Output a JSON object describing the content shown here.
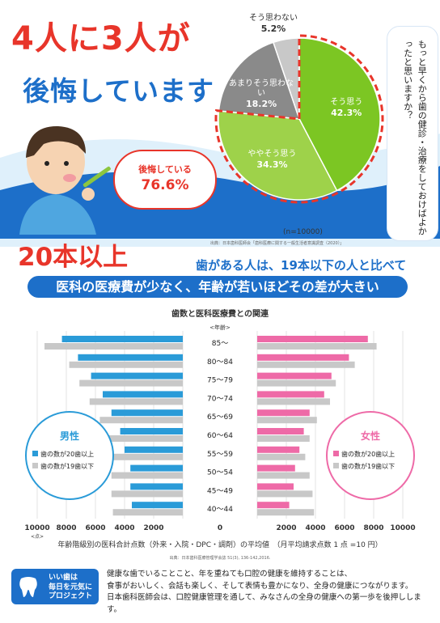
{
  "hero": {
    "headline_line1": "4人に3人が",
    "headline_line2": "後悔しています",
    "regret_label": "後悔している",
    "regret_pct": "76.6%"
  },
  "survey": {
    "question": "もっと早くから歯の健診・治療をしておけばよかったと思いますか？",
    "n": "(n=10000)",
    "source": "出典：日本歯科医師会「歯科医療に関する一般生活者意識調査（2020）」",
    "chart_data": {
      "type": "pie",
      "slices": [
        {
          "label": "そう思う",
          "value": 42.3,
          "text": "42.3%",
          "color": "#7cc623"
        },
        {
          "label": "ややそう思う",
          "value": 34.3,
          "text": "34.3%",
          "color": "#9ed24a"
        },
        {
          "label": "あまりそう思わない",
          "value": 18.2,
          "text": "18.2%",
          "color": "#8a8a8a"
        },
        {
          "label": "そう思わない",
          "value": 5.2,
          "text": "5.2%",
          "color": "#c8c8c8"
        }
      ]
    }
  },
  "mid": {
    "big": "20本以上",
    "sub": "歯がある人は、19本以下の人と比べて",
    "banner": "医科の医療費が少なく、年齢が若いほどその差が大きい"
  },
  "teeth_chart": {
    "title": "歯数と医科医療費との関連",
    "age_header": "<年齢>",
    "male_title": "男性",
    "female_title": "女性",
    "legend_20": "歯の数が20歯以上",
    "legend_19": "歯の数が19歯以下",
    "x_unit": "<点>",
    "axis_caption": "年齢階級別の医科合計点数（外来・入院・DPC・調剤）の平均値　（月平均請求点数 1 点 =10 円）",
    "source": "出典：日本歯科医療管理学会誌 51(3), 136-142,2016.",
    "chart_data": {
      "type": "bar",
      "orientation": "horizontal-butterfly",
      "categories": [
        "85～",
        "80～84",
        "75～79",
        "70～74",
        "65～69",
        "60～64",
        "55～59",
        "50～54",
        "45～49",
        "40～44"
      ],
      "x_ticks": [
        "10000",
        "8000",
        "6000",
        "4000",
        "2000",
        "0",
        "2000",
        "4000",
        "6000",
        "8000",
        "10000"
      ],
      "xlim": [
        0,
        10000
      ],
      "series": [
        {
          "name": "男性 歯の数が20歯以上",
          "color": "#2a9bd8",
          "values": [
            8300,
            7200,
            6300,
            5500,
            4900,
            4300,
            4000,
            3600,
            3600,
            3500
          ]
        },
        {
          "name": "男性 歯の数が19歯以下",
          "color": "#c8c8c8",
          "values": [
            9500,
            7800,
            7100,
            6400,
            5700,
            5100,
            4800,
            4900,
            4900,
            4800
          ]
        },
        {
          "name": "女性 歯の数が20歯以上",
          "color": "#ee6aa7",
          "values": [
            7600,
            6300,
            5100,
            4600,
            3600,
            3200,
            2900,
            2600,
            2500,
            2200
          ]
        },
        {
          "name": "女性 歯の数が19歯以下",
          "color": "#c8c8c8",
          "values": [
            8200,
            6700,
            5400,
            5000,
            4100,
            3600,
            3300,
            3600,
            3800,
            3900
          ]
        }
      ]
    }
  },
  "footer": {
    "logo_line1": "いい歯は",
    "logo_line2": "毎日を元気に",
    "logo_line3": "プロジェクト",
    "text1": "健康な歯でいることこと、年を重ねても口腔の健康を維持することは、",
    "text2": "食事がおいしく、会話も楽しく、そして表情も豊かになり、全身の健康につながります。",
    "text3": "日本歯科医師会は、口腔健康管理を通して、みなさんの全身の健康への第一歩を後押しします。"
  }
}
